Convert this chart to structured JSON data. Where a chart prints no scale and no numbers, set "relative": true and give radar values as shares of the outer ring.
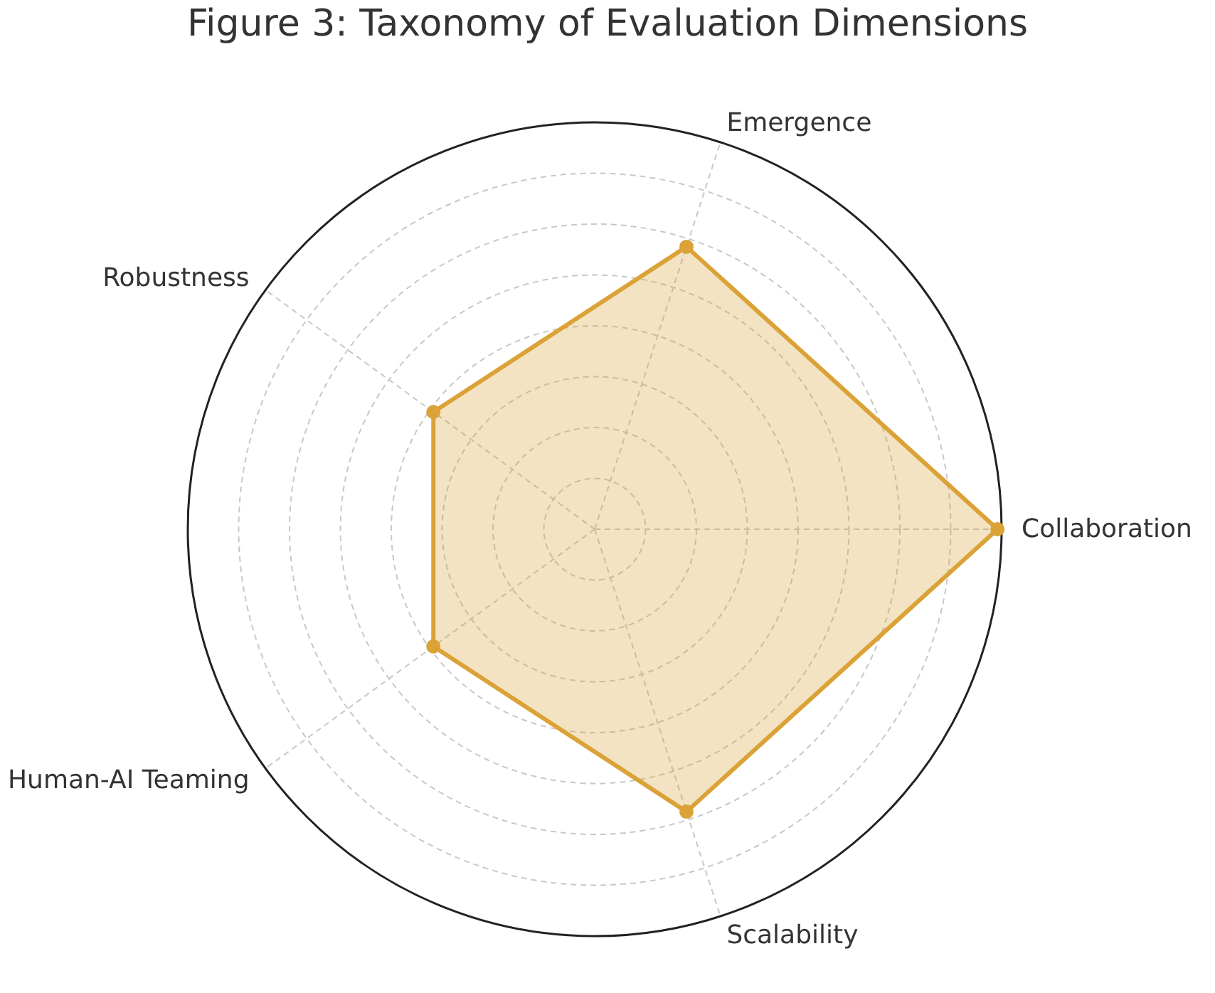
{
  "chart_data": {
    "type": "radar",
    "title": "Figure 3: Taxonomy of Evaluation Dimensions",
    "categories": [
      "Emergence",
      "Collaboration",
      "Scalability",
      "Human-AI Teaming",
      "Robustness"
    ],
    "series": [
      {
        "color": "#dba237",
        "values": [
          0.73,
          0.99,
          0.73,
          0.49,
          0.49
        ]
      }
    ],
    "relative": true,
    "marker": "circle",
    "grid": true,
    "legend": false
  }
}
